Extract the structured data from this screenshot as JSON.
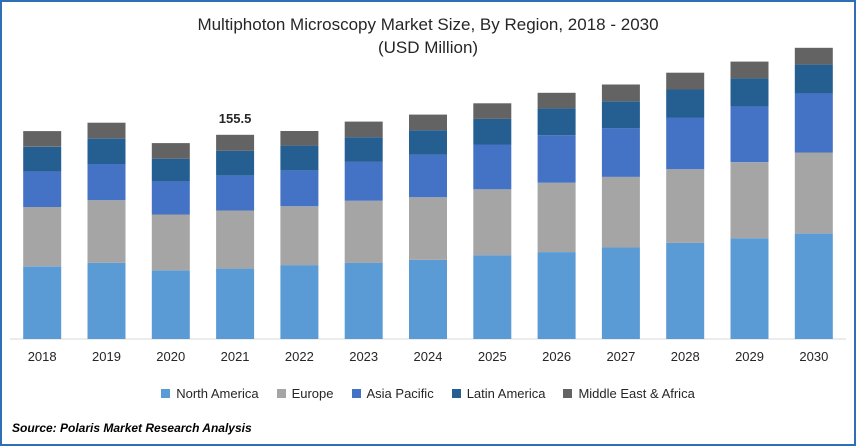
{
  "title": "Multiphoton Microscopy Market Size, By Region, 2018 - 2030",
  "subtitle": "(USD Million)",
  "source": "Source: Polaris  Market Research Analysis",
  "colors": {
    "North America": "#5b9bd5",
    "Europe": "#a5a5a5",
    "Asia Pacific": "#4472c4",
    "Latin America": "#255e91",
    "Middle East & Africa": "#636363"
  },
  "chart_data": {
    "type": "bar",
    "stacked": true,
    "categories": [
      "2018",
      "2019",
      "2020",
      "2021",
      "2022",
      "2023",
      "2024",
      "2025",
      "2026",
      "2027",
      "2028",
      "2029",
      "2030"
    ],
    "series": [
      {
        "name": "North America",
        "values": [
          55.4,
          58.0,
          52.3,
          53.6,
          56.3,
          58.0,
          60.3,
          63.8,
          66.2,
          69.8,
          73.2,
          76.8,
          80.3
        ]
      },
      {
        "name": "Europe",
        "values": [
          45.1,
          47.7,
          42.5,
          44.2,
          44.7,
          47.2,
          47.7,
          50.2,
          52.8,
          53.6,
          56.1,
          57.8,
          61.7
        ]
      },
      {
        "name": "Asia Pacific",
        "values": [
          27.2,
          27.6,
          25.2,
          26.8,
          27.6,
          29.8,
          32.3,
          34.1,
          36.2,
          37.2,
          39.4,
          42.6,
          45.1
        ]
      },
      {
        "name": "Latin America",
        "values": [
          18.7,
          19.5,
          17.3,
          18.7,
          18.7,
          18.7,
          18.7,
          19.5,
          20.4,
          20.4,
          21.3,
          21.3,
          21.9
        ]
      },
      {
        "name": "Middle East & Africa",
        "values": [
          11.9,
          11.9,
          11.9,
          12.2,
          11.1,
          11.9,
          11.9,
          11.9,
          11.9,
          12.8,
          12.8,
          12.8,
          12.8
        ]
      }
    ],
    "data_labels": [
      {
        "category": "2021",
        "value": "155.5"
      }
    ],
    "ylim": [
      0,
      230
    ],
    "xlabel": "",
    "ylabel": "",
    "legend": "bottom",
    "grid": false
  }
}
